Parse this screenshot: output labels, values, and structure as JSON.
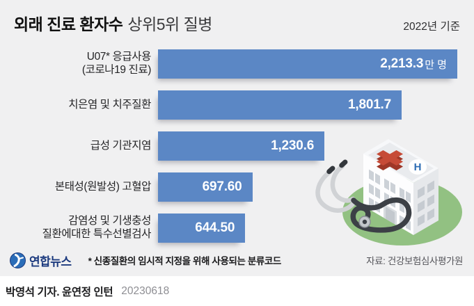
{
  "header": {
    "title_bold": "외래 진료 환자수",
    "title_light": "상위5위 질병",
    "period": "2022년 기준"
  },
  "chart_data": {
    "type": "bar",
    "orientation": "horizontal",
    "title": "외래 진료 환자수 상위5위 질병",
    "subtitle": "2022년 기준",
    "unit": "만 명",
    "categories": [
      "U07* 응급사용\n(코로나19 진료)",
      "치은염 및 치주질환",
      "급성 기관지염",
      "본태성(원발성) 고혈압",
      "감염성 및 기생충성\n질환에대한 특수선별검사"
    ],
    "values": [
      2213.3,
      1801.7,
      1230.6,
      697.6,
      644.5
    ],
    "value_labels": [
      "2,213.3",
      "1,801.7",
      "1,230.6",
      "697.60",
      "644.50"
    ],
    "xmax": 2213.3,
    "xlabel": "",
    "ylabel": "",
    "grid": false,
    "legend": false,
    "bar_color": "#5b87c5"
  },
  "footer": {
    "brand": "연합뉴스",
    "footnote": "* 신종질환의 임시적 지정을 위해 사용되는 분류코드",
    "source": "자료: 건강보험심사평가원"
  },
  "credit": {
    "byline": "박영석 기자. 윤연정 인턴",
    "date": "20230618"
  },
  "colors": {
    "bar": "#5b87c5",
    "panel_background": "#f0f0f1",
    "brand_navy": "#1c3a7e",
    "cross_red": "#c64b37",
    "ground_green": "#92c182"
  }
}
